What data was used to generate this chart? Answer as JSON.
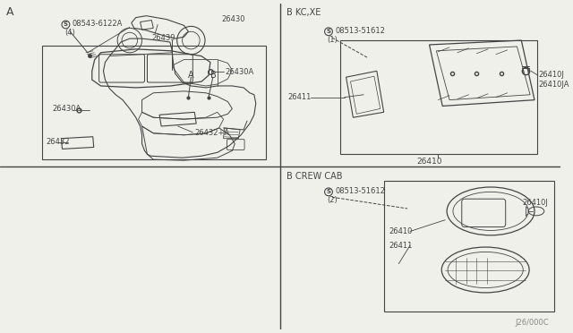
{
  "bg_color": "#f0f0ea",
  "line_color": "#444444",
  "diagram_code": "J26/000C",
  "sec_A_label": "A",
  "sec_B_KCXE_label": "B KC,XE",
  "sec_B_CREWCAB_label": "B CREW CAB",
  "screw_A_label": "08543-6122A",
  "screw_A_qty": "(4)",
  "screw_B_label": "08513-51612",
  "screw_B1_qty": "(1)",
  "screw_B2_qty": "(2)",
  "parts_A": [
    "26430",
    "26439",
    "26430A",
    "26432+A",
    "26432",
    "26430A"
  ],
  "parts_KCXE": [
    "26410",
    "26411",
    "26410J",
    "26410JA"
  ],
  "parts_CREWCAB": [
    "26410",
    "26411",
    "26410J"
  ]
}
